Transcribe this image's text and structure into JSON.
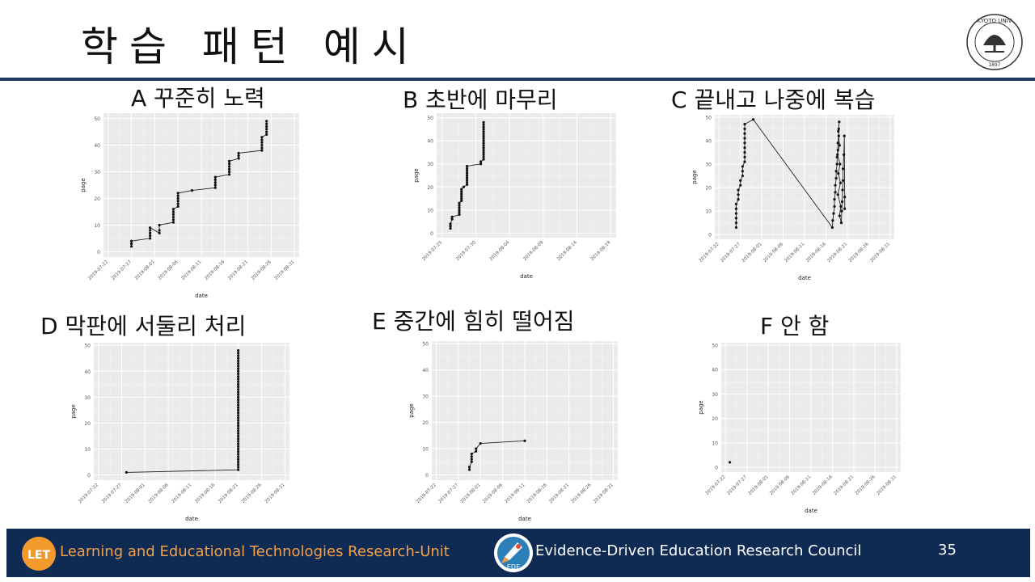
{
  "slide": {
    "title": "학습 패턴 예시",
    "page_number": "35"
  },
  "footer": {
    "left_text": "Learning and Educational Technologies Research-Unit",
    "left_logo_text": "LET",
    "center_text": "Evidence-Driven Education Research Council",
    "center_logo_text": "EDE"
  },
  "seal": {
    "text": "KYOTO UNIVERSITY FOUNDED 1897"
  },
  "colors": {
    "footer_bg": "#0f2b53",
    "rule": "#1f3a64",
    "plot_bg": "#ebebeb",
    "accent_orange": "#f2a04a"
  },
  "chart_data": [
    {
      "id": "A",
      "label": "A 꾸준히 노력",
      "type": "line",
      "xlabel": "date",
      "ylabel": "page",
      "x_tick_labels": [
        "2019-07-22",
        "2019-07-27",
        "2019-08-01",
        "2019-08-06",
        "2019-08-11",
        "2019-08-16",
        "2019-08-21",
        "2019-08-26",
        "2019-08-31"
      ],
      "y_ticks": [
        0,
        10,
        20,
        30,
        40,
        50
      ],
      "xlim": [
        -1,
        41
      ],
      "ylim": [
        -2,
        52
      ],
      "points": [
        [
          5,
          2
        ],
        [
          5,
          3
        ],
        [
          5,
          4
        ],
        [
          9,
          5
        ],
        [
          9,
          6
        ],
        [
          9,
          7
        ],
        [
          9,
          8
        ],
        [
          9,
          9
        ],
        [
          11,
          7
        ],
        [
          11,
          8
        ],
        [
          11,
          10
        ],
        [
          14,
          11
        ],
        [
          14,
          12
        ],
        [
          14,
          13
        ],
        [
          14,
          14
        ],
        [
          14,
          15
        ],
        [
          14,
          16
        ],
        [
          15,
          17
        ],
        [
          15,
          18
        ],
        [
          15,
          19
        ],
        [
          15,
          20
        ],
        [
          15,
          21
        ],
        [
          15,
          22
        ],
        [
          18,
          23
        ],
        [
          23,
          24
        ],
        [
          23,
          25
        ],
        [
          23,
          26
        ],
        [
          23,
          27
        ],
        [
          23,
          28
        ],
        [
          26,
          29
        ],
        [
          26,
          30
        ],
        [
          26,
          31
        ],
        [
          26,
          32
        ],
        [
          26,
          33
        ],
        [
          26,
          34
        ],
        [
          28,
          35
        ],
        [
          28,
          36
        ],
        [
          28,
          37
        ],
        [
          33,
          38
        ],
        [
          33,
          39
        ],
        [
          33,
          40
        ],
        [
          33,
          41
        ],
        [
          33,
          42
        ],
        [
          33,
          43
        ],
        [
          34,
          44
        ],
        [
          34,
          45
        ],
        [
          34,
          46
        ],
        [
          34,
          47
        ],
        [
          34,
          48
        ],
        [
          34,
          49
        ]
      ]
    },
    {
      "id": "B",
      "label": "B 초반에 마무리",
      "type": "line",
      "xlabel": "date",
      "ylabel": "page",
      "x_tick_labels": [
        "2019-07-25",
        "2019-07-30",
        "2019-08-04",
        "2019-08-09",
        "2019-08-14",
        "2019-08-19"
      ],
      "y_ticks": [
        0,
        10,
        20,
        30,
        40,
        50
      ],
      "xlim": [
        -1.5,
        31
      ],
      "ylim": [
        -2,
        52
      ],
      "points": [
        [
          1,
          2
        ],
        [
          1,
          3
        ],
        [
          1,
          4
        ],
        [
          1.3,
          6
        ],
        [
          1.3,
          7
        ],
        [
          2.6,
          8
        ],
        [
          2.6,
          9
        ],
        [
          2.6,
          10
        ],
        [
          2.6,
          11
        ],
        [
          2.6,
          12
        ],
        [
          2.6,
          13
        ],
        [
          3,
          14
        ],
        [
          3,
          15
        ],
        [
          3,
          16
        ],
        [
          3,
          17
        ],
        [
          3,
          18
        ],
        [
          3,
          19
        ],
        [
          3.4,
          20
        ],
        [
          4,
          21
        ],
        [
          4,
          22
        ],
        [
          4,
          23
        ],
        [
          4,
          24
        ],
        [
          4,
          25
        ],
        [
          4,
          26
        ],
        [
          4,
          27
        ],
        [
          4,
          28
        ],
        [
          4,
          29
        ],
        [
          6.5,
          30
        ],
        [
          6.5,
          31
        ],
        [
          7,
          32
        ],
        [
          7,
          33
        ],
        [
          7,
          34
        ],
        [
          7,
          35
        ],
        [
          7,
          36
        ],
        [
          7,
          37
        ],
        [
          7,
          38
        ],
        [
          7,
          39
        ],
        [
          7,
          40
        ],
        [
          7,
          41
        ],
        [
          7,
          42
        ],
        [
          7,
          43
        ],
        [
          7,
          44
        ],
        [
          7,
          45
        ],
        [
          7,
          46
        ],
        [
          7,
          47
        ],
        [
          7,
          48
        ]
      ]
    },
    {
      "id": "C",
      "label": "C 끝내고 나중에 복습",
      "type": "line",
      "xlabel": "date",
      "ylabel": "page",
      "x_tick_labels": [
        "2019-07-22",
        "2019-07-27",
        "2019-08-01",
        "2019-08-06",
        "2019-08-11",
        "2019-08-16",
        "2019-08-21",
        "2019-08-26",
        "2019-08-31"
      ],
      "y_ticks": [
        0,
        10,
        20,
        30,
        40,
        50
      ],
      "xlim": [
        -1,
        41
      ],
      "ylim": [
        -2,
        51
      ],
      "points": [
        [
          4,
          3
        ],
        [
          4,
          5
        ],
        [
          4,
          7
        ],
        [
          4,
          9
        ],
        [
          4,
          11
        ],
        [
          4,
          13
        ],
        [
          4.5,
          15
        ],
        [
          4.5,
          17
        ],
        [
          4.5,
          19
        ],
        [
          5,
          21
        ],
        [
          5,
          23
        ],
        [
          5.5,
          25
        ],
        [
          5.5,
          27
        ],
        [
          5.5,
          29
        ],
        [
          6,
          31
        ],
        [
          6,
          33
        ],
        [
          6,
          35
        ],
        [
          6,
          37
        ],
        [
          6,
          39
        ],
        [
          6,
          41
        ],
        [
          6,
          43
        ],
        [
          6,
          45
        ],
        [
          6,
          47
        ],
        [
          8,
          49
        ],
        [
          26.5,
          3
        ],
        [
          26.6,
          6
        ],
        [
          26.8,
          9
        ],
        [
          27,
          12
        ],
        [
          27,
          15
        ],
        [
          27.2,
          18
        ],
        [
          27.2,
          21
        ],
        [
          27.4,
          24
        ],
        [
          27.4,
          27
        ],
        [
          27.6,
          30
        ],
        [
          27.6,
          33
        ],
        [
          27.8,
          36
        ],
        [
          27.8,
          39
        ],
        [
          28,
          42
        ],
        [
          28,
          45
        ],
        [
          28.1,
          48
        ],
        [
          27.9,
          44
        ],
        [
          28.2,
          38
        ],
        [
          27.7,
          34
        ],
        [
          28.3,
          30
        ],
        [
          27.9,
          26
        ],
        [
          28.4,
          22
        ],
        [
          27.8,
          17
        ],
        [
          28.5,
          12
        ],
        [
          28.2,
          8
        ],
        [
          28.6,
          5
        ],
        [
          28.7,
          10
        ],
        [
          28.8,
          14
        ],
        [
          28.9,
          19
        ],
        [
          29,
          23
        ],
        [
          29,
          28
        ],
        [
          29.2,
          34
        ],
        [
          29.3,
          42
        ],
        [
          29.4,
          11
        ],
        [
          29.4,
          16
        ]
      ]
    },
    {
      "id": "D",
      "label": "D 막판에 서둘리 처리",
      "type": "line",
      "xlabel": "date",
      "ylabel": "page",
      "x_tick_labels": [
        "2019-07-22",
        "2019-07-27",
        "2019-08-01",
        "2019-08-06",
        "2019-08-11",
        "2019-08-16",
        "2019-08-21",
        "2019-08-26",
        "2019-08-31"
      ],
      "y_ticks": [
        0,
        10,
        20,
        30,
        40,
        50
      ],
      "xlim": [
        -1,
        41
      ],
      "ylim": [
        -2,
        51
      ],
      "points": [
        [
          6,
          1
        ],
        [
          30,
          2
        ],
        [
          30,
          3
        ],
        [
          30,
          4
        ],
        [
          30,
          5
        ],
        [
          30,
          6
        ],
        [
          30,
          7
        ],
        [
          30,
          8
        ],
        [
          30,
          9
        ],
        [
          30,
          10
        ],
        [
          30,
          11
        ],
        [
          30,
          12
        ],
        [
          30,
          13
        ],
        [
          30,
          14
        ],
        [
          30,
          15
        ],
        [
          30,
          16
        ],
        [
          30,
          17
        ],
        [
          30,
          18
        ],
        [
          30,
          19
        ],
        [
          30,
          20
        ],
        [
          30,
          21
        ],
        [
          30,
          22
        ],
        [
          30,
          23
        ],
        [
          30,
          24
        ],
        [
          30,
          25
        ],
        [
          30,
          26
        ],
        [
          30,
          27
        ],
        [
          30,
          28
        ],
        [
          30,
          29
        ],
        [
          30,
          30
        ],
        [
          30,
          31
        ],
        [
          30,
          32
        ],
        [
          30,
          33
        ],
        [
          30,
          34
        ],
        [
          30,
          35
        ],
        [
          30,
          36
        ],
        [
          30,
          37
        ],
        [
          30,
          38
        ],
        [
          30,
          39
        ],
        [
          30,
          40
        ],
        [
          30,
          41
        ],
        [
          30,
          42
        ],
        [
          30,
          43
        ],
        [
          30,
          44
        ],
        [
          30,
          45
        ],
        [
          30,
          46
        ],
        [
          30,
          47
        ],
        [
          30,
          48
        ]
      ]
    },
    {
      "id": "E",
      "label": "E 중간에 힘히 떨어짐",
      "type": "line",
      "xlabel": "date",
      "ylabel": "page",
      "x_tick_labels": [
        "2019-07-22",
        "2019-07-27",
        "2019-08-01",
        "2019-08-06",
        "2019-08-11",
        "2019-08-16",
        "2019-08-21",
        "2019-08-26",
        "2019-08-31"
      ],
      "y_ticks": [
        0,
        10,
        20,
        30,
        40,
        50
      ],
      "xlim": [
        -1,
        41
      ],
      "ylim": [
        -2,
        51
      ],
      "points": [
        [
          7.5,
          2
        ],
        [
          7.5,
          3
        ],
        [
          8,
          5
        ],
        [
          8,
          6
        ],
        [
          8,
          7
        ],
        [
          8,
          8
        ],
        [
          9,
          9
        ],
        [
          9,
          10
        ],
        [
          10,
          12
        ],
        [
          20,
          13
        ]
      ]
    },
    {
      "id": "F",
      "label": "F 안 함",
      "type": "scatter",
      "xlabel": "date",
      "ylabel": "page",
      "x_tick_labels": [
        "2019-07-22",
        "2019-07-27",
        "2019-08-01",
        "2019-08-06",
        "2019-08-11",
        "2019-08-16",
        "2019-08-21",
        "2019-08-26",
        "2019-08-31"
      ],
      "y_ticks": [
        0,
        10,
        20,
        30,
        40,
        50
      ],
      "xlim": [
        -1,
        41
      ],
      "ylim": [
        -2,
        51
      ],
      "points": [
        [
          1,
          2
        ]
      ]
    }
  ]
}
